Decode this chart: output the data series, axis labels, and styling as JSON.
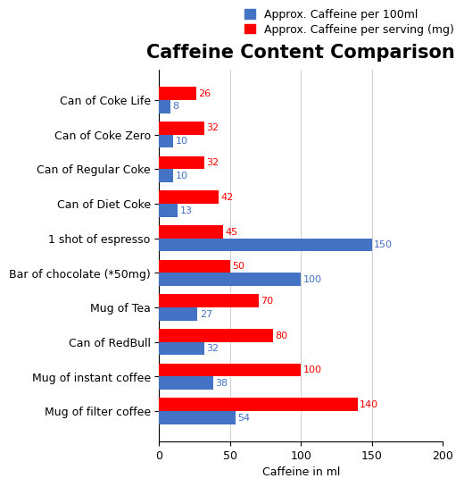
{
  "title": "Caffeine Content Comparison",
  "xlabel": "Caffeine in ml",
  "categories": [
    "Can of Coke Life",
    "Can of Coke Zero",
    "Can of Regular Coke",
    "Can of Diet Coke",
    "1 shot of espresso",
    "Bar of chocolate (*50mg)",
    "Mug of Tea",
    "Can of RedBull",
    "Mug of instant coffee",
    "Mug of filter coffee"
  ],
  "per_100ml": [
    8,
    10,
    10,
    13,
    150,
    100,
    27,
    32,
    38,
    54
  ],
  "per_serving": [
    26,
    32,
    32,
    42,
    45,
    50,
    70,
    80,
    100,
    140
  ],
  "color_blue": "#4472C4",
  "color_red": "#FF0000",
  "legend_labels": [
    "Approx. Caffeine per 100ml",
    "Approx. Caffeine per serving (mg)"
  ],
  "xlim": [
    0,
    200
  ],
  "xticks": [
    0,
    50,
    100,
    150,
    200
  ],
  "bar_height": 0.38,
  "title_fontsize": 15,
  "label_fontsize": 9,
  "tick_fontsize": 9,
  "annotation_fontsize": 8,
  "background_color": "#ffffff"
}
